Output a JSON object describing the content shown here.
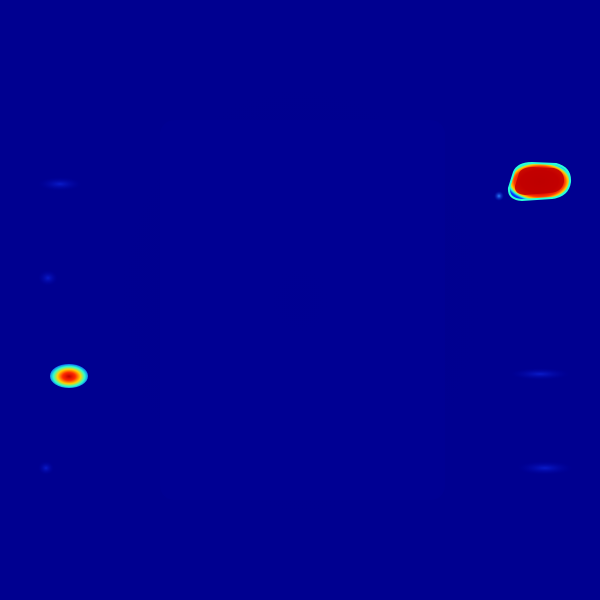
{
  "image": {
    "kind": "heatmap-visualization",
    "colormap": "jet",
    "background_color": "#000090",
    "hotspot_colors": {
      "low": "#0000ff",
      "mid_low": "#00ffff",
      "mid": "#ffff00",
      "high": "#ff0000",
      "peak": "#c00000"
    },
    "hotspots": [
      {
        "name": "hotspot-large-top-right",
        "intensity": 1.0
      },
      {
        "name": "hotspot-small-left",
        "intensity": 0.95
      },
      {
        "name": "hotspot-speck-top-right",
        "intensity": 0.25
      }
    ],
    "faint_marks": [
      {
        "name": "faint-mark-left-1",
        "intensity": 0.12
      },
      {
        "name": "faint-mark-left-2",
        "intensity": 0.1
      },
      {
        "name": "faint-mark-left-3",
        "intensity": 0.08
      },
      {
        "name": "faint-mark-right-1",
        "intensity": 0.08
      },
      {
        "name": "faint-mark-right-2",
        "intensity": 0.1
      }
    ]
  }
}
